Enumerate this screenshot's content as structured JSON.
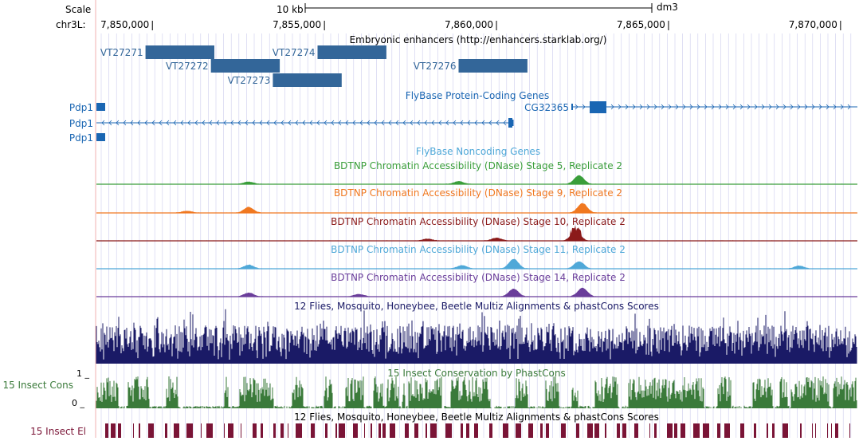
{
  "scale": {
    "label": "Scale",
    "bar_label": "10 kb",
    "assembly": "dm3"
  },
  "chrom_label": "chr3L:",
  "ruler_ticks": [
    {
      "pos": 7850000,
      "label": "7,850,000"
    },
    {
      "pos": 7855000,
      "label": "7,855,000"
    },
    {
      "pos": 7860000,
      "label": "7,860,000"
    },
    {
      "pos": 7865000,
      "label": "7,865,000"
    },
    {
      "pos": 7870000,
      "label": "7,870,000"
    }
  ],
  "tracks": {
    "enhancers": {
      "title": "Embryonic enhancers (http://enhancers.starklab.org/)",
      "items": [
        {
          "name": "VT27271",
          "start": 7849800,
          "end": 7851800,
          "row": 0
        },
        {
          "name": "VT27274",
          "start": 7854800,
          "end": 7856800,
          "row": 0
        },
        {
          "name": "VT27272",
          "start": 7851700,
          "end": 7853700,
          "row": 1
        },
        {
          "name": "VT27276",
          "start": 7858900,
          "end": 7860900,
          "row": 1
        },
        {
          "name": "VT27273",
          "start": 7853500,
          "end": 7855500,
          "row": 2
        }
      ]
    },
    "protein_coding": {
      "title": "FlyBase Protein-Coding Genes",
      "genes": [
        {
          "name": "Pdp1",
          "row": 0
        },
        {
          "name": "Pdp1",
          "row": 1
        },
        {
          "name": "Pdp1",
          "row": 2
        },
        {
          "name": "CG32365",
          "row": 0
        }
      ]
    },
    "noncoding": {
      "title": "FlyBase Noncoding Genes"
    },
    "dnase": [
      {
        "title": "BDTNP Chromatin Accessibility (DNase) Stage 5, Replicate 2",
        "color": "#3a9e3a",
        "peaks": [
          [
            7858900,
            0.3
          ],
          [
            7862400,
            0.9
          ],
          [
            7852800,
            0.25
          ]
        ]
      },
      {
        "title": "BDTNP Chromatin Accessibility (DNase) Stage 9, Replicate 2",
        "color": "#f07820",
        "peaks": [
          [
            7852800,
            0.6
          ],
          [
            7862500,
            1.0
          ],
          [
            7851000,
            0.2
          ]
        ]
      },
      {
        "title": "BDTNP Chromatin Accessibility (DNase) Stage 10, Replicate 2",
        "color": "#8b1a1a",
        "peaks": [
          [
            7862300,
            1.0
          ],
          [
            7860000,
            0.3
          ],
          [
            7858000,
            0.2
          ]
        ]
      },
      {
        "title": "BDTNP Chromatin Accessibility (DNase) Stage 11, Replicate 2",
        "color": "#4fa8d8",
        "peaks": [
          [
            7860500,
            1.0
          ],
          [
            7862400,
            0.75
          ],
          [
            7852800,
            0.4
          ],
          [
            7868800,
            0.3
          ],
          [
            7859000,
            0.35
          ]
        ]
      },
      {
        "title": "BDTNP Chromatin Accessibility (DNase) Stage 14, Replicate 2",
        "color": "#6a3d9a",
        "peaks": [
          [
            7860500,
            0.8
          ],
          [
            7862500,
            0.9
          ],
          [
            7852800,
            0.4
          ],
          [
            7856000,
            0.25
          ]
        ]
      }
    ],
    "multiz": {
      "title": "12 Flies, Mosquito, Honeybee, Beetle Multiz Alignments & phastCons Scores",
      "color": "#1a1a66"
    },
    "phastcons": {
      "label": "15 Insect Cons",
      "title": "15 Insect Conservation by PhastCons",
      "y_max": "1 _",
      "y_min": "0 _",
      "color": "#3a7a3a"
    },
    "elements": {
      "label": "15 Insect El",
      "title": "12 Flies, Mosquito, Honeybee, Beetle Multiz Alignments & phastCons Scores",
      "color": "#7a1436"
    }
  },
  "colors": {
    "gene": "#1a66b3",
    "enhancer": "#336699",
    "grid": "#ccccee"
  }
}
